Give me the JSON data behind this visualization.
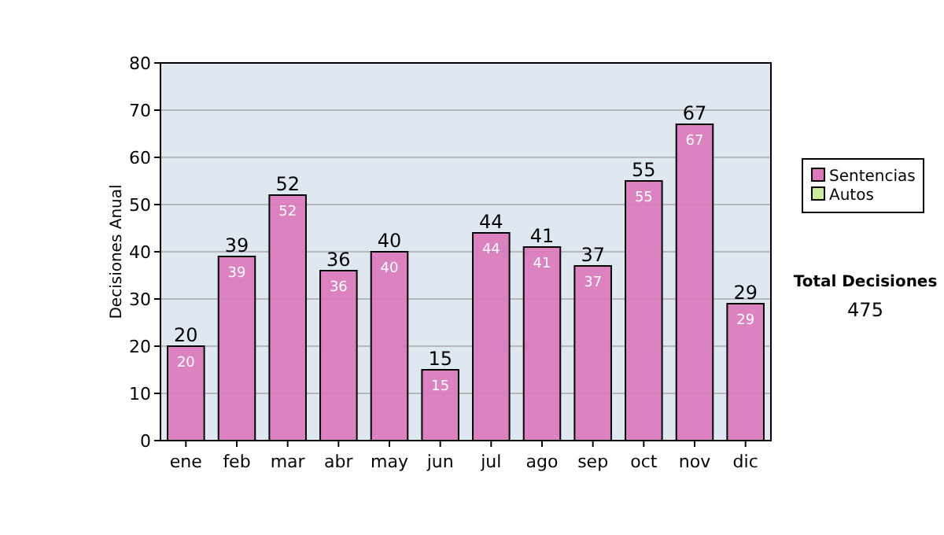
{
  "chart_data": {
    "type": "bar",
    "ylabel": "Decisiones Anual",
    "categories": [
      "ene",
      "feb",
      "mar",
      "abr",
      "may",
      "jun",
      "jul",
      "ago",
      "sep",
      "oct",
      "nov",
      "dic"
    ],
    "series": [
      {
        "name": "Sentencias",
        "color": "#dd77bb",
        "values": [
          20,
          39,
          52,
          36,
          40,
          15,
          44,
          41,
          37,
          55,
          67,
          29
        ]
      },
      {
        "name": "Autos",
        "color": "#ccee99",
        "values": [
          null,
          null,
          null,
          null,
          null,
          null,
          null,
          null,
          null,
          null,
          null,
          null
        ]
      }
    ],
    "data_labels": true,
    "totals": [
      "20",
      "39",
      "52",
      "36",
      "40",
      "15",
      "44",
      "41",
      "37",
      "55",
      "67",
      "29"
    ],
    "ylim": [
      0,
      80
    ],
    "yticks": [
      0,
      10,
      20,
      30,
      40,
      50,
      60,
      70,
      80
    ],
    "grid": "y",
    "legend": "right",
    "annotations": [
      "Total Decisiones",
      "475"
    ]
  }
}
